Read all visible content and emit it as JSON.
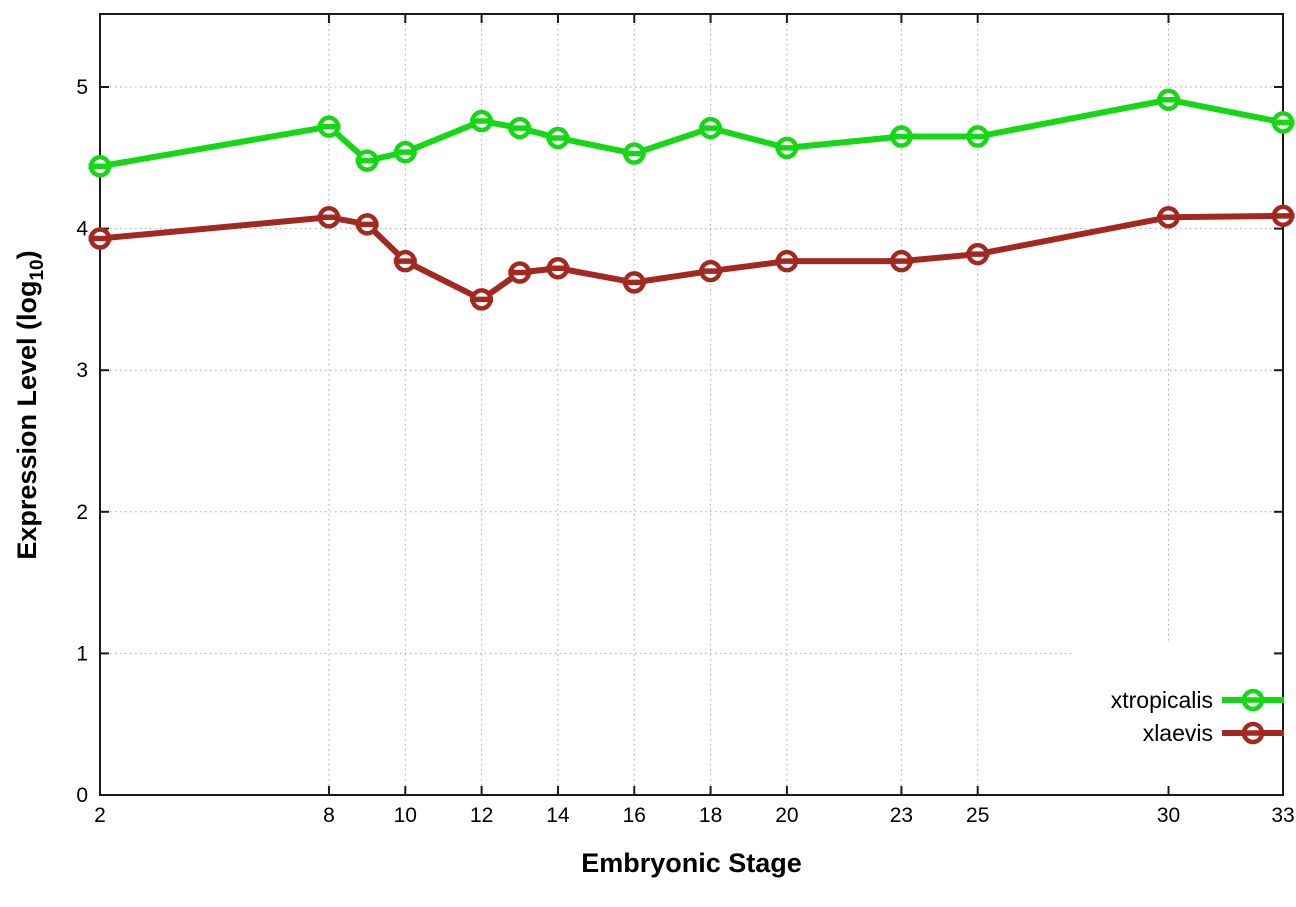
{
  "chart_data": {
    "type": "line",
    "title": "",
    "xlabel": "Embryonic Stage",
    "ylabel": "Expression Level (log10)",
    "ylabel_parts": {
      "prefix": "Expression Level (log",
      "subscript": "10",
      "suffix": ")"
    },
    "x": [
      2,
      8,
      9,
      10,
      12,
      13,
      14,
      16,
      18,
      20,
      23,
      25,
      30,
      33
    ],
    "xtick_values": [
      2,
      8,
      10,
      12,
      14,
      16,
      18,
      20,
      23,
      25,
      30,
      33
    ],
    "xtick_labels": [
      "2",
      "8",
      "10",
      "12",
      "14",
      "16",
      "18",
      "20",
      "23",
      "25",
      "30",
      "33"
    ],
    "ytick_values": [
      0,
      1,
      2,
      3,
      4,
      5
    ],
    "ytick_labels": [
      "0",
      "1",
      "2",
      "3",
      "4",
      "5"
    ],
    "xlim": [
      2,
      33
    ],
    "ylim": [
      0,
      5.52
    ],
    "grid": true,
    "legend_position": "inside-bottom-right",
    "series": [
      {
        "name": "xtropicalis",
        "color": "#14d814",
        "values": [
          4.44,
          4.72,
          4.48,
          4.54,
          4.76,
          4.71,
          4.64,
          4.53,
          4.71,
          4.57,
          4.65,
          4.65,
          4.91,
          4.75
        ]
      },
      {
        "name": "xlaevis",
        "color": "#a22820",
        "values": [
          3.93,
          4.08,
          4.03,
          3.77,
          3.5,
          3.69,
          3.72,
          3.62,
          3.7,
          3.77,
          3.77,
          3.82,
          4.08,
          4.09
        ]
      }
    ]
  },
  "colors": {
    "background": "#ffffff",
    "grid": "#a8a8a8",
    "axis": "#1a1a1a",
    "text": "#000000",
    "legend_background": "#ffffff"
  }
}
